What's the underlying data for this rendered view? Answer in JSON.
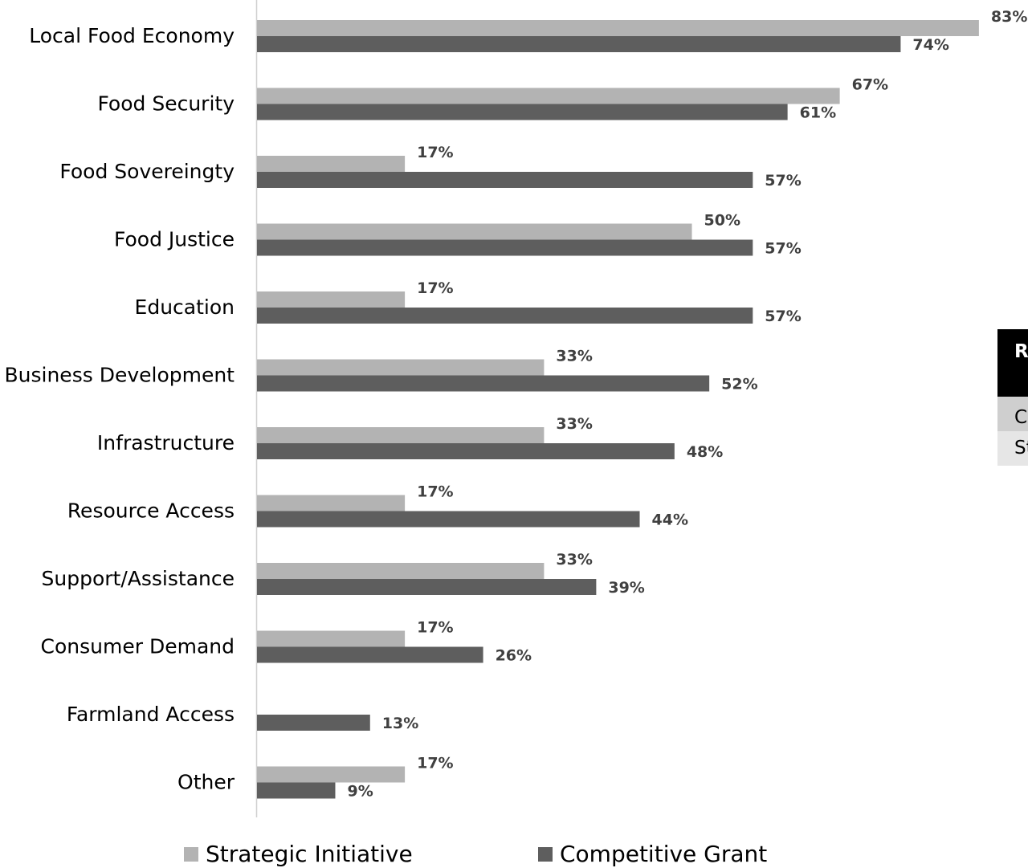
{
  "chart_data": {
    "type": "bar",
    "orientation": "horizontal",
    "categories": [
      "Local Food Economy",
      "Food Security",
      "Food Sovereingty",
      "Food Justice",
      "Education",
      "Business Development",
      "Infrastructure",
      "Resource Access",
      "Support/Assistance",
      "Consumer Demand",
      "Farmland Access",
      "Other"
    ],
    "series": [
      {
        "name": "Strategic Initiative",
        "color": "#b3b3b3",
        "values": [
          83,
          67,
          17,
          50,
          17,
          33,
          33,
          17,
          33,
          17,
          null,
          17
        ],
        "labels": [
          "83%",
          "67%",
          "17%",
          "50%",
          "17%",
          "33%",
          "33%",
          "17%",
          "33%",
          "17%",
          "",
          "17%"
        ]
      },
      {
        "name": "Competitive Grant",
        "color": "#5e5e5e",
        "values": [
          74,
          61,
          57,
          57,
          57,
          52,
          48,
          44,
          39,
          26,
          13,
          9
        ],
        "labels": [
          "74%",
          "61%",
          "57%",
          "57%",
          "57%",
          "52%",
          "48%",
          "44%",
          "39%",
          "26%",
          "13%",
          "9%"
        ]
      }
    ],
    "xlim": [
      0,
      100
    ],
    "grid": false,
    "legend_position": "bottom"
  },
  "side_table": {
    "header": "R",
    "rows": [
      "C",
      "St"
    ]
  }
}
